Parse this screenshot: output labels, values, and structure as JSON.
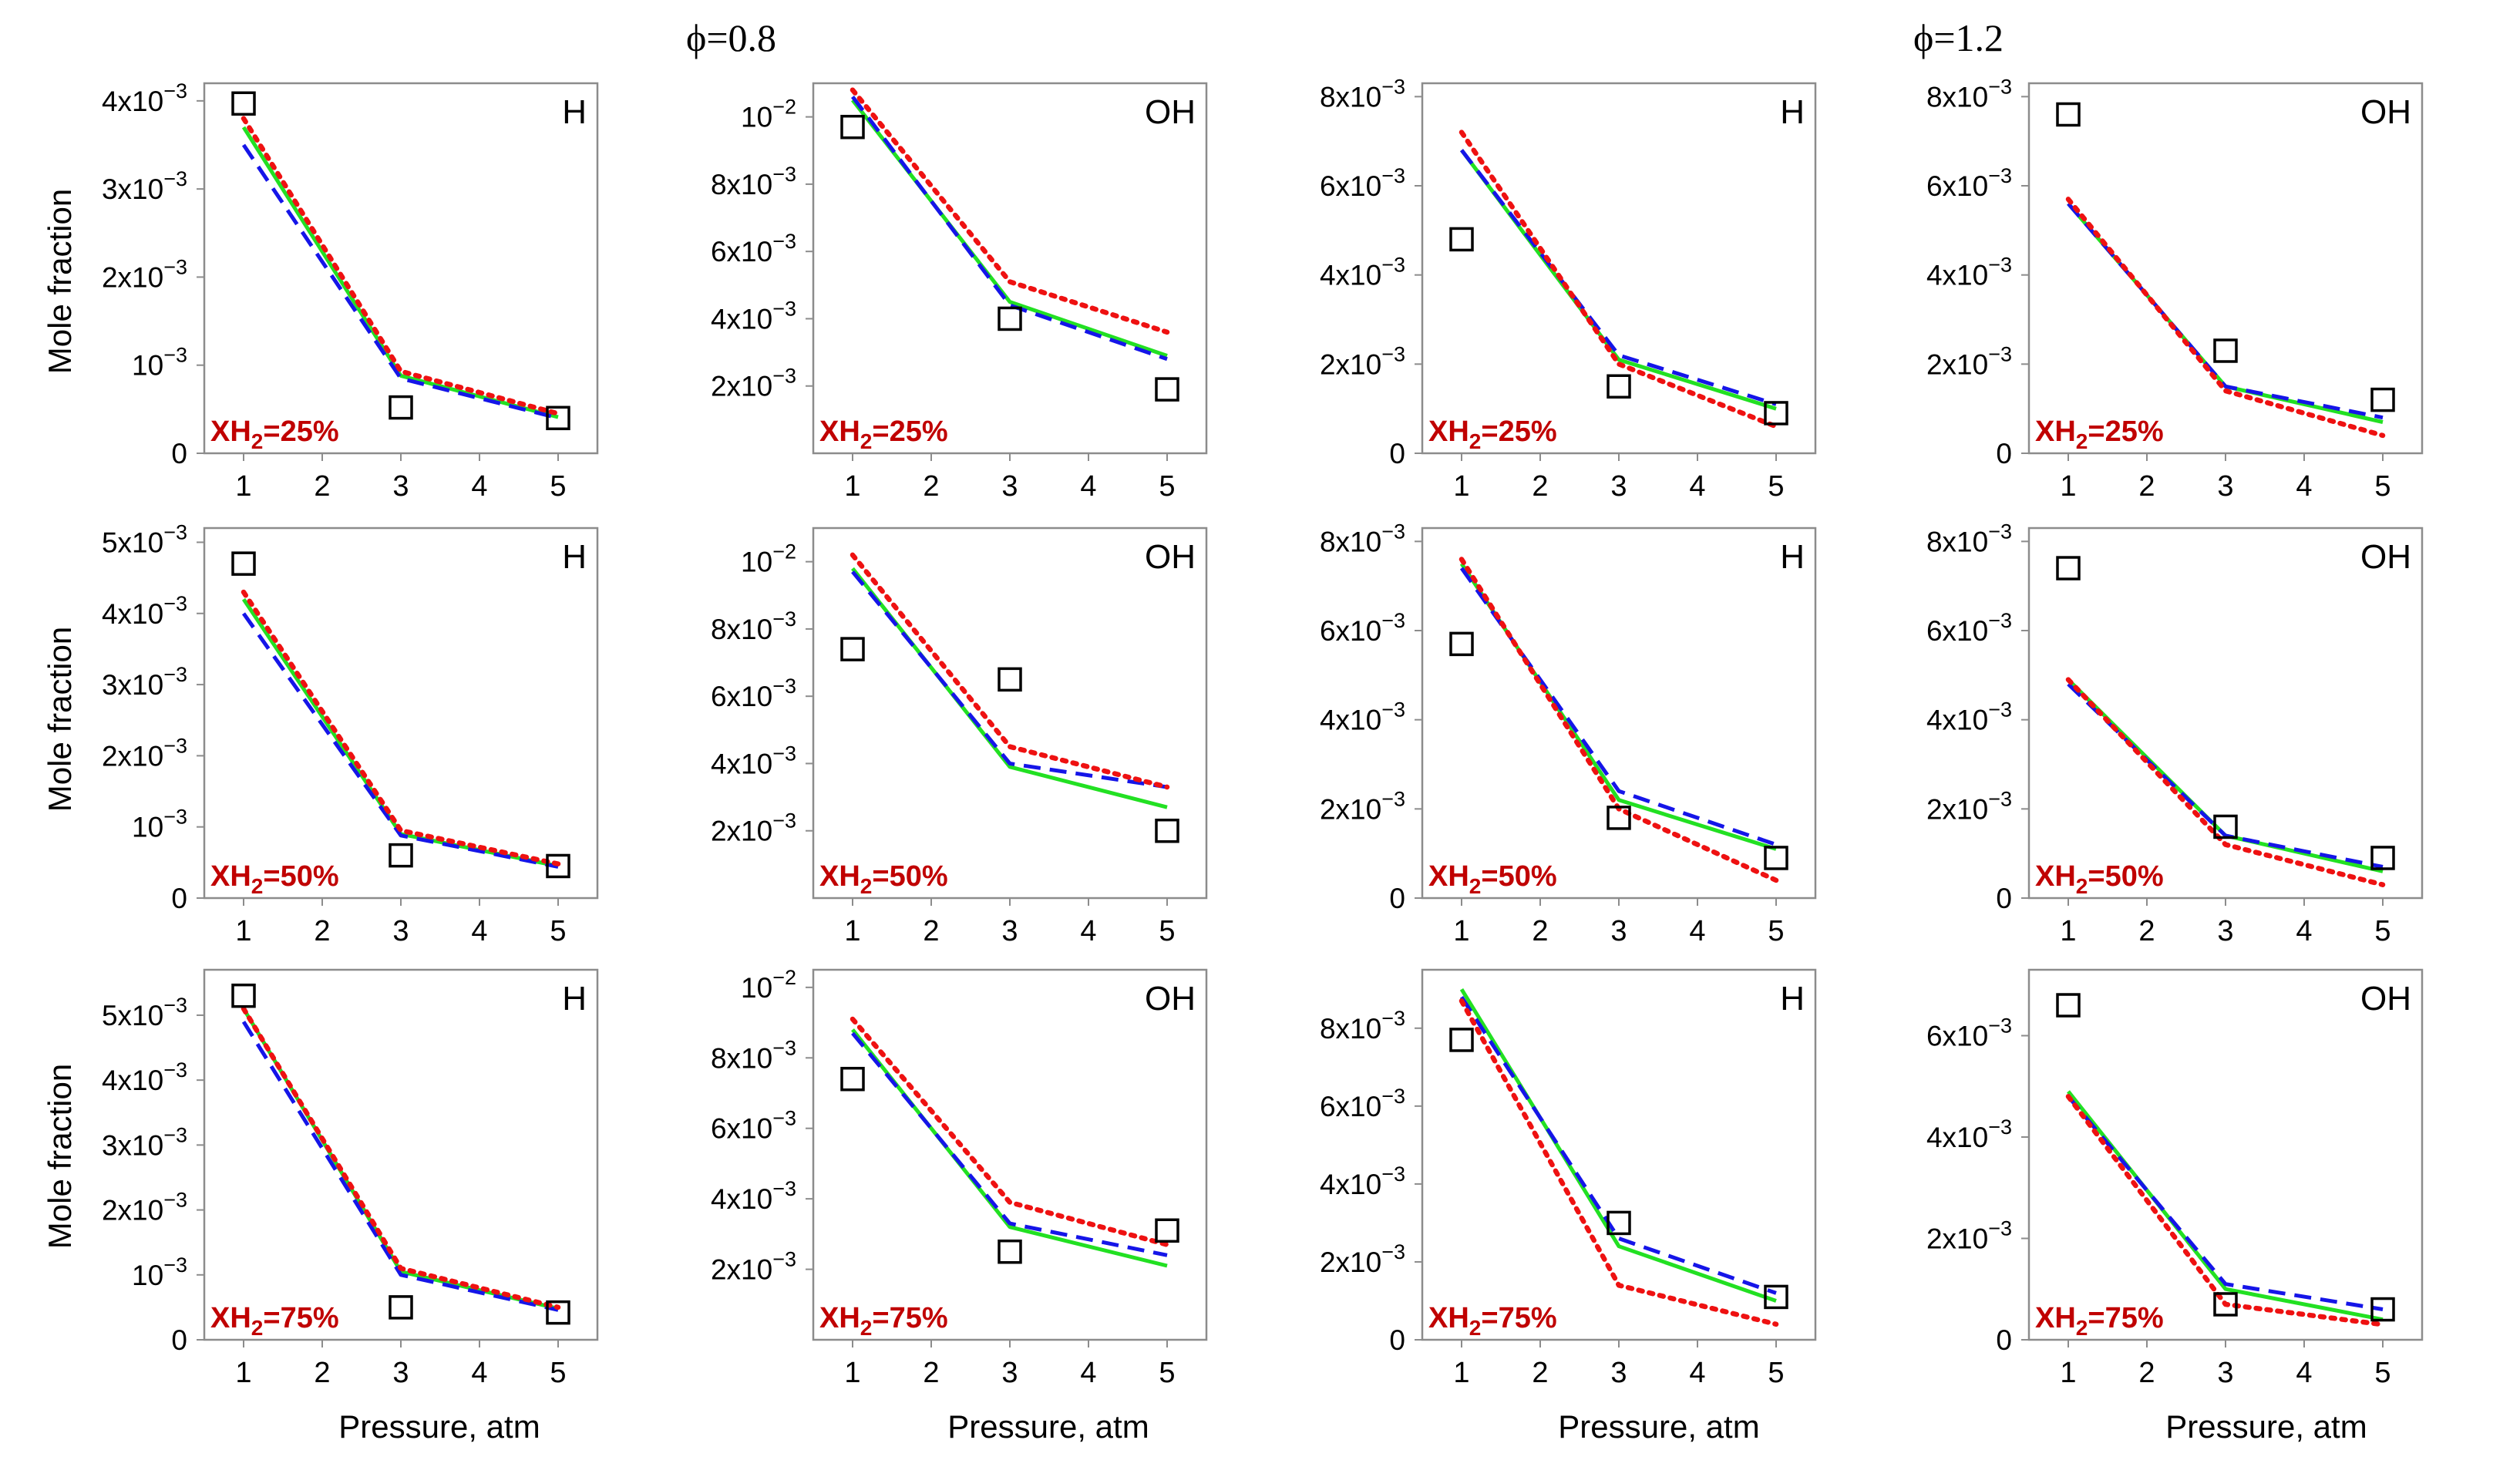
{
  "figure": {
    "phi_labels": [
      "ϕ=0.8",
      "ϕ=1.2"
    ],
    "ylabel": "Mole fraction",
    "xlabel": "Pressure, atm",
    "x_ticks": [
      "1",
      "2",
      "3",
      "4",
      "5"
    ],
    "colors": {
      "model_green": "#22e022",
      "model_blue": "#1515e8",
      "model_red": "#ee1111",
      "label_red": "#c00000",
      "experiment": "#000000"
    }
  },
  "chart_data": [
    {
      "type": "line",
      "phi": "ϕ=0.8",
      "species": "H",
      "h2_label": "XH",
      "h2_sub": "2",
      "h2_value": "=25%",
      "xlim": [
        0.5,
        5.5
      ],
      "ylim": [
        0,
        0.0042
      ],
      "y_ticks": [
        {
          "value": 0,
          "base": "0",
          "exp": ""
        },
        {
          "value": 0.001,
          "base": "10",
          "exp": "−3"
        },
        {
          "value": 0.002,
          "base": "2x10",
          "exp": "−3"
        },
        {
          "value": 0.003,
          "base": "3x10",
          "exp": "−3"
        },
        {
          "value": 0.004,
          "base": "4x10",
          "exp": "−3"
        }
      ],
      "x": [
        1,
        3,
        5
      ],
      "series": [
        {
          "name": "green",
          "values": [
            0.0037,
            0.00088,
            0.00041
          ]
        },
        {
          "name": "blue",
          "values": [
            0.0035,
            0.00085,
            0.0004
          ]
        },
        {
          "name": "red",
          "values": [
            0.0038,
            0.00093,
            0.00045
          ]
        }
      ],
      "experiment": [
        0.00397,
        0.00052,
        0.0004
      ]
    },
    {
      "type": "line",
      "phi": "ϕ=0.8",
      "species": "OH",
      "h2_label": "XH",
      "h2_sub": "2",
      "h2_value": "=25%",
      "xlim": [
        0.5,
        5.5
      ],
      "ylim": [
        0,
        0.011
      ],
      "y_ticks": [
        {
          "value": 0.002,
          "base": "2x10",
          "exp": "−3"
        },
        {
          "value": 0.004,
          "base": "4x10",
          "exp": "−3"
        },
        {
          "value": 0.006,
          "base": "6x10",
          "exp": "−3"
        },
        {
          "value": 0.008,
          "base": "8x10",
          "exp": "−3"
        },
        {
          "value": 0.01,
          "base": "10",
          "exp": "−2"
        }
      ],
      "x": [
        1,
        3,
        5
      ],
      "series": [
        {
          "name": "green",
          "values": [
            0.0105,
            0.0045,
            0.0029
          ]
        },
        {
          "name": "blue",
          "values": [
            0.0106,
            0.0044,
            0.0028
          ]
        },
        {
          "name": "red",
          "values": [
            0.0108,
            0.0051,
            0.0036
          ]
        }
      ],
      "experiment": [
        0.0097,
        0.004,
        0.0019
      ]
    },
    {
      "type": "line",
      "phi": "ϕ=1.2",
      "species": "H",
      "h2_label": "XH",
      "h2_sub": "2",
      "h2_value": "=25%",
      "xlim": [
        0.5,
        5.5
      ],
      "ylim": [
        0,
        0.0083
      ],
      "y_ticks": [
        {
          "value": 0,
          "base": "0",
          "exp": ""
        },
        {
          "value": 0.002,
          "base": "2x10",
          "exp": "−3"
        },
        {
          "value": 0.004,
          "base": "4x10",
          "exp": "−3"
        },
        {
          "value": 0.006,
          "base": "6x10",
          "exp": "−3"
        },
        {
          "value": 0.008,
          "base": "8x10",
          "exp": "−3"
        }
      ],
      "x": [
        1,
        3,
        5
      ],
      "series": [
        {
          "name": "green",
          "values": [
            0.0068,
            0.0021,
            0.001
          ]
        },
        {
          "name": "blue",
          "values": [
            0.0068,
            0.0022,
            0.0011
          ]
        },
        {
          "name": "red",
          "values": [
            0.0072,
            0.002,
            0.0006
          ]
        }
      ],
      "experiment": [
        0.0048,
        0.0015,
        0.0009
      ]
    },
    {
      "type": "line",
      "phi": "ϕ=1.2",
      "species": "OH",
      "h2_label": "XH",
      "h2_sub": "2",
      "h2_value": "=25%",
      "xlim": [
        0.5,
        5.5
      ],
      "ylim": [
        0,
        0.0083
      ],
      "y_ticks": [
        {
          "value": 0,
          "base": "0",
          "exp": ""
        },
        {
          "value": 0.002,
          "base": "2x10",
          "exp": "−3"
        },
        {
          "value": 0.004,
          "base": "4x10",
          "exp": "−3"
        },
        {
          "value": 0.006,
          "base": "6x10",
          "exp": "−3"
        },
        {
          "value": 0.008,
          "base": "8x10",
          "exp": "−3"
        }
      ],
      "x": [
        1,
        3,
        5
      ],
      "series": [
        {
          "name": "green",
          "values": [
            0.0056,
            0.0015,
            0.0007
          ]
        },
        {
          "name": "blue",
          "values": [
            0.0056,
            0.0015,
            0.0008
          ]
        },
        {
          "name": "red",
          "values": [
            0.0057,
            0.0014,
            0.0004
          ]
        }
      ],
      "experiment": [
        0.0076,
        0.0023,
        0.0012
      ]
    },
    {
      "type": "line",
      "phi": "ϕ=0.8",
      "species": "H",
      "h2_label": "XH",
      "h2_sub": "2",
      "h2_value": "=50%",
      "xlim": [
        0.5,
        5.5
      ],
      "ylim": [
        0,
        0.0052
      ],
      "y_ticks": [
        {
          "value": 0,
          "base": "0",
          "exp": ""
        },
        {
          "value": 0.001,
          "base": "10",
          "exp": "−3"
        },
        {
          "value": 0.002,
          "base": "2x10",
          "exp": "−3"
        },
        {
          "value": 0.003,
          "base": "3x10",
          "exp": "−3"
        },
        {
          "value": 0.004,
          "base": "4x10",
          "exp": "−3"
        },
        {
          "value": 0.005,
          "base": "5x10",
          "exp": "−3"
        }
      ],
      "x": [
        1,
        3,
        5
      ],
      "series": [
        {
          "name": "green",
          "values": [
            0.0042,
            0.0009,
            0.00045
          ]
        },
        {
          "name": "blue",
          "values": [
            0.004,
            0.00088,
            0.00044
          ]
        },
        {
          "name": "red",
          "values": [
            0.0043,
            0.00095,
            0.00048
          ]
        }
      ],
      "experiment": [
        0.0047,
        0.0006,
        0.00045
      ]
    },
    {
      "type": "line",
      "phi": "ϕ=0.8",
      "species": "OH",
      "h2_label": "XH",
      "h2_sub": "2",
      "h2_value": "=50%",
      "xlim": [
        0.5,
        5.5
      ],
      "ylim": [
        0,
        0.011
      ],
      "y_ticks": [
        {
          "value": 0.002,
          "base": "2x10",
          "exp": "−3"
        },
        {
          "value": 0.004,
          "base": "4x10",
          "exp": "−3"
        },
        {
          "value": 0.006,
          "base": "6x10",
          "exp": "−3"
        },
        {
          "value": 0.008,
          "base": "8x10",
          "exp": "−3"
        },
        {
          "value": 0.01,
          "base": "10",
          "exp": "−2"
        }
      ],
      "x": [
        1,
        3,
        5
      ],
      "series": [
        {
          "name": "green",
          "values": [
            0.0098,
            0.0039,
            0.0027
          ]
        },
        {
          "name": "blue",
          "values": [
            0.0097,
            0.004,
            0.0033
          ]
        },
        {
          "name": "red",
          "values": [
            0.0102,
            0.0045,
            0.0033
          ]
        }
      ],
      "experiment": [
        0.0074,
        0.0065,
        0.002
      ]
    },
    {
      "type": "line",
      "phi": "ϕ=1.2",
      "species": "H",
      "h2_label": "XH",
      "h2_sub": "2",
      "h2_value": "=50%",
      "xlim": [
        0.5,
        5.5
      ],
      "ylim": [
        0,
        0.0083
      ],
      "y_ticks": [
        {
          "value": 0,
          "base": "0",
          "exp": ""
        },
        {
          "value": 0.002,
          "base": "2x10",
          "exp": "−3"
        },
        {
          "value": 0.004,
          "base": "4x10",
          "exp": "−3"
        },
        {
          "value": 0.006,
          "base": "6x10",
          "exp": "−3"
        },
        {
          "value": 0.008,
          "base": "8x10",
          "exp": "−3"
        }
      ],
      "x": [
        1,
        3,
        5
      ],
      "series": [
        {
          "name": "green",
          "values": [
            0.0075,
            0.0022,
            0.0011
          ]
        },
        {
          "name": "blue",
          "values": [
            0.0074,
            0.0024,
            0.0012
          ]
        },
        {
          "name": "red",
          "values": [
            0.0076,
            0.002,
            0.0004
          ]
        }
      ],
      "experiment": [
        0.0057,
        0.0018,
        0.0009
      ]
    },
    {
      "type": "line",
      "phi": "ϕ=1.2",
      "species": "OH",
      "h2_label": "XH",
      "h2_sub": "2",
      "h2_value": "=50%",
      "xlim": [
        0.5,
        5.5
      ],
      "ylim": [
        0,
        0.0083
      ],
      "y_ticks": [
        {
          "value": 0,
          "base": "0",
          "exp": ""
        },
        {
          "value": 0.002,
          "base": "2x10",
          "exp": "−3"
        },
        {
          "value": 0.004,
          "base": "4x10",
          "exp": "−3"
        },
        {
          "value": 0.006,
          "base": "6x10",
          "exp": "−3"
        },
        {
          "value": 0.008,
          "base": "8x10",
          "exp": "−3"
        }
      ],
      "x": [
        1,
        3,
        5
      ],
      "series": [
        {
          "name": "green",
          "values": [
            0.0049,
            0.0014,
            0.0006
          ]
        },
        {
          "name": "blue",
          "values": [
            0.0048,
            0.0014,
            0.0007
          ]
        },
        {
          "name": "red",
          "values": [
            0.0049,
            0.0012,
            0.0003
          ]
        }
      ],
      "experiment": [
        0.0074,
        0.0016,
        0.0009
      ]
    },
    {
      "type": "line",
      "phi": "ϕ=0.8",
      "species": "H",
      "h2_label": "XH",
      "h2_sub": "2",
      "h2_value": "=75%",
      "xlim": [
        0.5,
        5.5
      ],
      "ylim": [
        0,
        0.0057
      ],
      "y_ticks": [
        {
          "value": 0,
          "base": "0",
          "exp": ""
        },
        {
          "value": 0.001,
          "base": "10",
          "exp": "−3"
        },
        {
          "value": 0.002,
          "base": "2x10",
          "exp": "−3"
        },
        {
          "value": 0.003,
          "base": "3x10",
          "exp": "−3"
        },
        {
          "value": 0.004,
          "base": "4x10",
          "exp": "−3"
        },
        {
          "value": 0.005,
          "base": "5x10",
          "exp": "−3"
        }
      ],
      "x": [
        1,
        3,
        5
      ],
      "series": [
        {
          "name": "green",
          "values": [
            0.0051,
            0.00105,
            0.00048
          ]
        },
        {
          "name": "blue",
          "values": [
            0.0049,
            0.001,
            0.00046
          ]
        },
        {
          "name": "red",
          "values": [
            0.0051,
            0.0011,
            0.0005
          ]
        }
      ],
      "experiment": [
        0.0053,
        0.0005,
        0.00042
      ]
    },
    {
      "type": "line",
      "phi": "ϕ=0.8",
      "species": "OH",
      "h2_label": "XH",
      "h2_sub": "2",
      "h2_value": "=75%",
      "xlim": [
        0.5,
        5.5
      ],
      "ylim": [
        0,
        0.0105
      ],
      "y_ticks": [
        {
          "value": 0.002,
          "base": "2x10",
          "exp": "−3"
        },
        {
          "value": 0.004,
          "base": "4x10",
          "exp": "−3"
        },
        {
          "value": 0.006,
          "base": "6x10",
          "exp": "−3"
        },
        {
          "value": 0.008,
          "base": "8x10",
          "exp": "−3"
        },
        {
          "value": 0.01,
          "base": "10",
          "exp": "−2"
        }
      ],
      "x": [
        1,
        3,
        5
      ],
      "series": [
        {
          "name": "green",
          "values": [
            0.0088,
            0.0032,
            0.0021
          ]
        },
        {
          "name": "blue",
          "values": [
            0.0087,
            0.0033,
            0.0024
          ]
        },
        {
          "name": "red",
          "values": [
            0.0091,
            0.0039,
            0.0027
          ]
        }
      ],
      "experiment": [
        0.0074,
        0.0025,
        0.0031
      ]
    },
    {
      "type": "line",
      "phi": "ϕ=1.2",
      "species": "H",
      "h2_label": "XH",
      "h2_sub": "2",
      "h2_value": "=75%",
      "xlim": [
        0.5,
        5.5
      ],
      "ylim": [
        0,
        0.0095
      ],
      "y_ticks": [
        {
          "value": 0,
          "base": "0",
          "exp": ""
        },
        {
          "value": 0.002,
          "base": "2x10",
          "exp": "−3"
        },
        {
          "value": 0.004,
          "base": "4x10",
          "exp": "−3"
        },
        {
          "value": 0.006,
          "base": "6x10",
          "exp": "−3"
        },
        {
          "value": 0.008,
          "base": "8x10",
          "exp": "−3"
        }
      ],
      "x": [
        1,
        3,
        5
      ],
      "series": [
        {
          "name": "green",
          "values": [
            0.009,
            0.0024,
            0.001
          ]
        },
        {
          "name": "blue",
          "values": [
            0.0088,
            0.0026,
            0.0012
          ]
        },
        {
          "name": "red",
          "values": [
            0.0087,
            0.0014,
            0.0004
          ]
        }
      ],
      "experiment": [
        0.0077,
        0.003,
        0.0011
      ]
    },
    {
      "type": "line",
      "phi": "ϕ=1.2",
      "species": "OH",
      "h2_label": "XH",
      "h2_sub": "2",
      "h2_value": "=75%",
      "xlim": [
        0.5,
        5.5
      ],
      "ylim": [
        0,
        0.0073
      ],
      "y_ticks": [
        {
          "value": 0,
          "base": "0",
          "exp": ""
        },
        {
          "value": 0.002,
          "base": "2x10",
          "exp": "−3"
        },
        {
          "value": 0.004,
          "base": "4x10",
          "exp": "−3"
        },
        {
          "value": 0.006,
          "base": "6x10",
          "exp": "−3"
        }
      ],
      "x": [
        1,
        3,
        5
      ],
      "series": [
        {
          "name": "green",
          "values": [
            0.0049,
            0.001,
            0.0004
          ]
        },
        {
          "name": "blue",
          "values": [
            0.0048,
            0.0011,
            0.0006
          ]
        },
        {
          "name": "red",
          "values": [
            0.0048,
            0.0007,
            0.0003
          ]
        }
      ],
      "experiment": [
        0.0066,
        0.0007,
        0.0006
      ]
    }
  ]
}
